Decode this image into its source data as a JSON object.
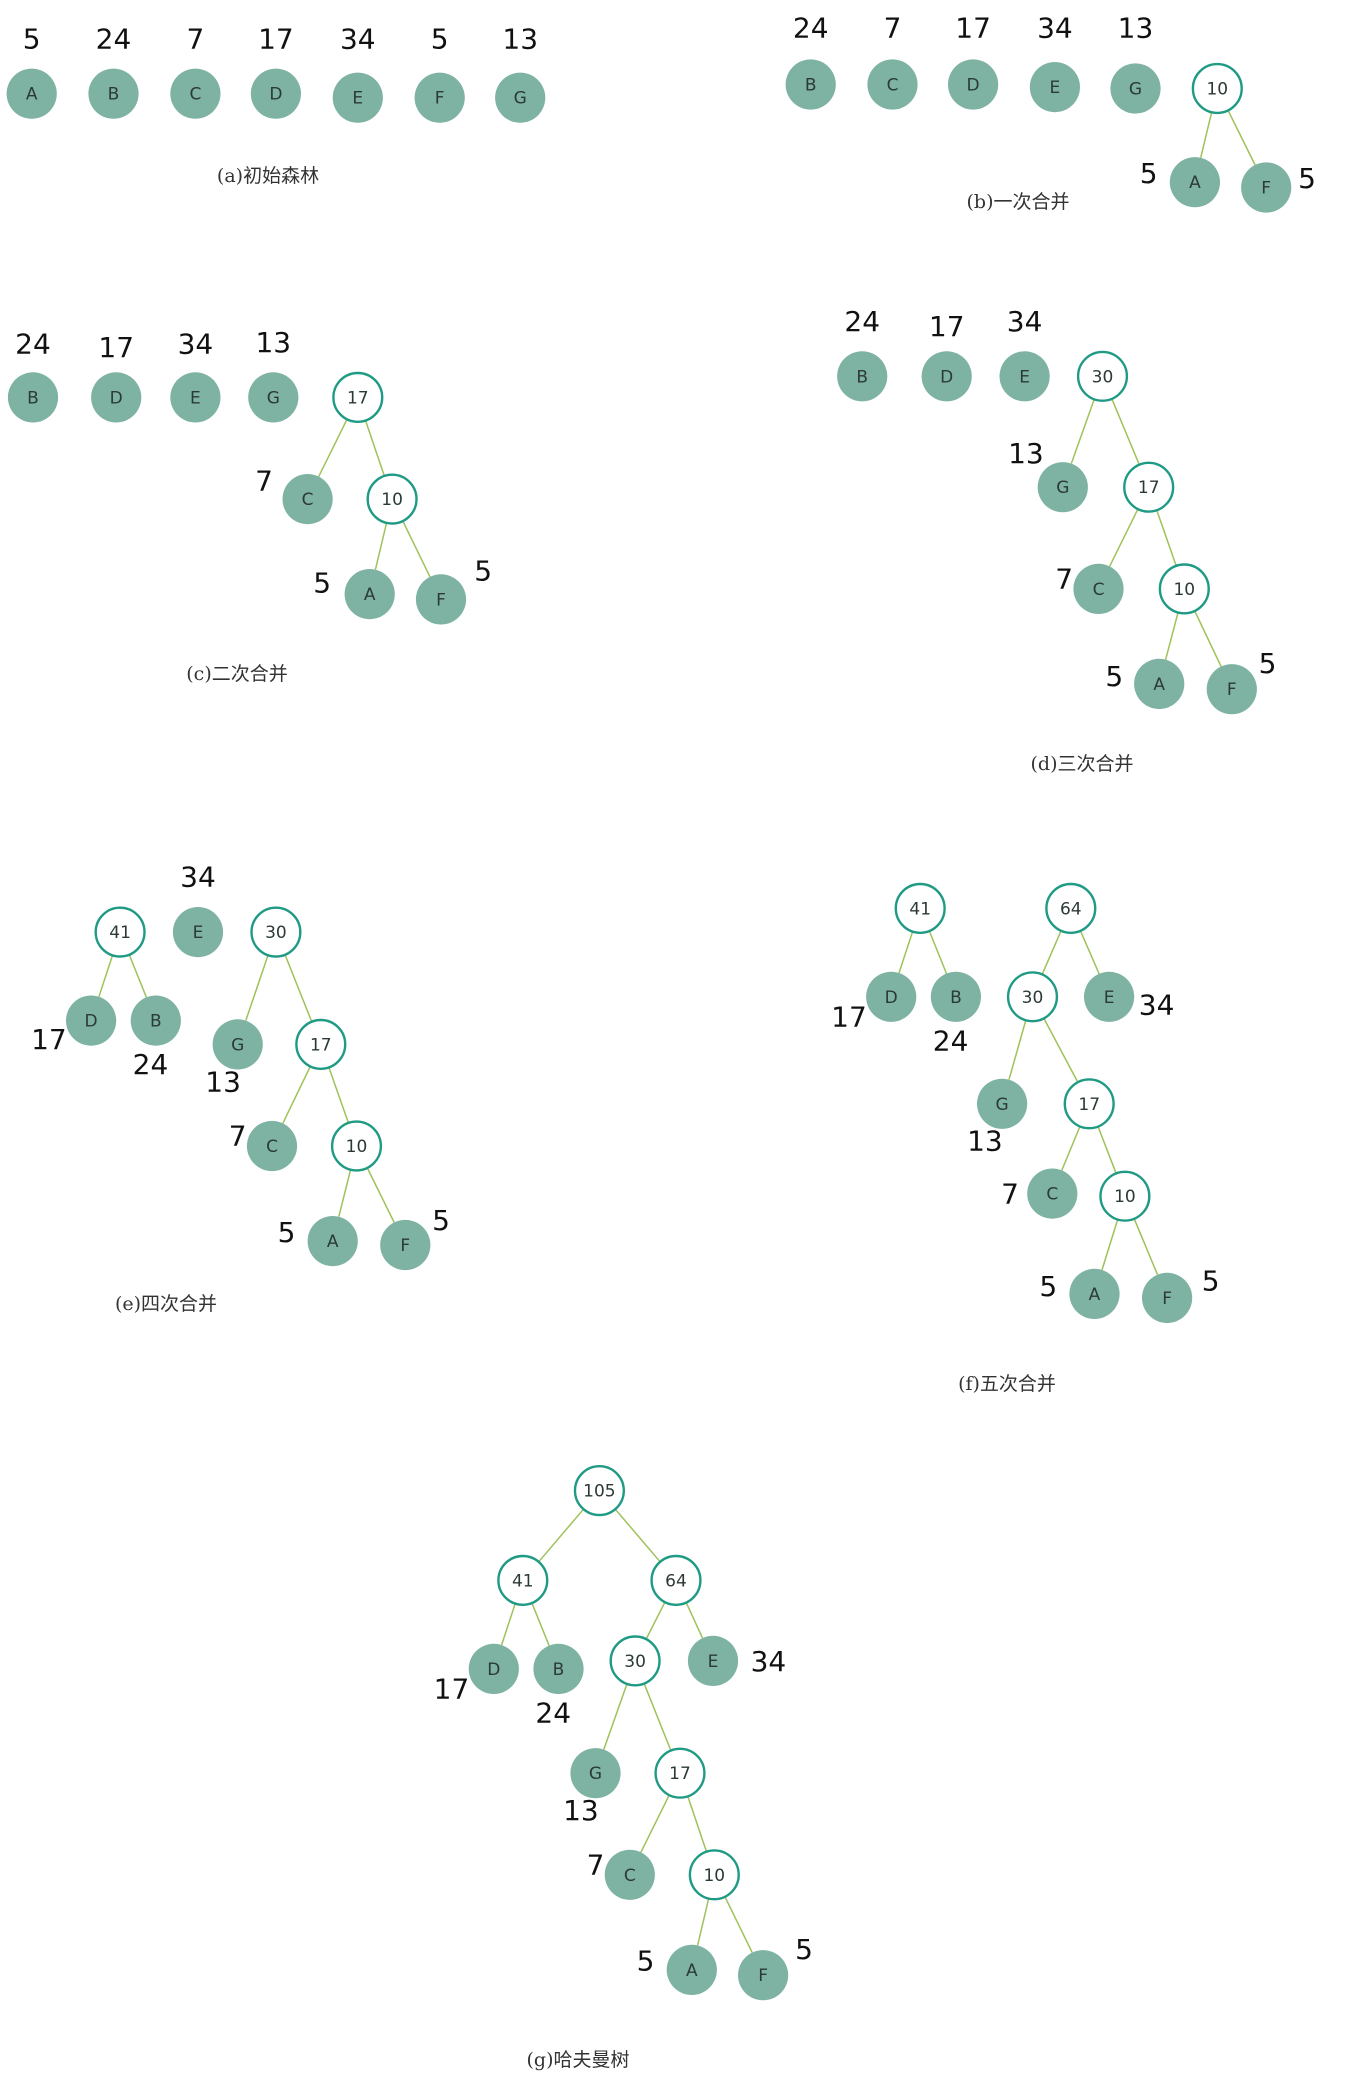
{
  "colors": {
    "leaf": "#7eb3a3",
    "inner_stroke": "#1f9a84",
    "edge": "#9ec25a"
  },
  "panels": [
    {
      "caption": "(a)初始森林",
      "nodes": [
        {
          "id": "A",
          "label": "A",
          "leaf": true,
          "weight": "5"
        },
        {
          "id": "B",
          "label": "B",
          "leaf": true,
          "weight": "24"
        },
        {
          "id": "C",
          "label": "C",
          "leaf": true,
          "weight": "7"
        },
        {
          "id": "D",
          "label": "D",
          "leaf": true,
          "weight": "17"
        },
        {
          "id": "E",
          "label": "E",
          "leaf": true,
          "weight": "34"
        },
        {
          "id": "F",
          "label": "F",
          "leaf": true,
          "weight": "5"
        },
        {
          "id": "G",
          "label": "G",
          "leaf": true,
          "weight": "13"
        }
      ],
      "edges": []
    },
    {
      "caption": "(b)一次合并",
      "nodes": [
        {
          "id": "B",
          "label": "B",
          "leaf": true,
          "weight": "24"
        },
        {
          "id": "C",
          "label": "C",
          "leaf": true,
          "weight": "7"
        },
        {
          "id": "D",
          "label": "D",
          "leaf": true,
          "weight": "17"
        },
        {
          "id": "E",
          "label": "E",
          "leaf": true,
          "weight": "34"
        },
        {
          "id": "G",
          "label": "G",
          "leaf": true,
          "weight": "13"
        },
        {
          "id": "n10",
          "label": "10",
          "leaf": false
        },
        {
          "id": "A",
          "label": "A",
          "leaf": true,
          "weight": "5"
        },
        {
          "id": "F",
          "label": "F",
          "leaf": true,
          "weight": "5"
        }
      ],
      "edges": [
        [
          "n10",
          "A"
        ],
        [
          "n10",
          "F"
        ]
      ]
    },
    {
      "caption": "(c)二次合并",
      "nodes": [
        {
          "id": "B",
          "label": "B",
          "leaf": true,
          "weight": "24"
        },
        {
          "id": "D",
          "label": "D",
          "leaf": true,
          "weight": "17"
        },
        {
          "id": "E",
          "label": "E",
          "leaf": true,
          "weight": "34"
        },
        {
          "id": "G",
          "label": "G",
          "leaf": true,
          "weight": "13"
        },
        {
          "id": "n17",
          "label": "17",
          "leaf": false
        },
        {
          "id": "C",
          "label": "C",
          "leaf": true,
          "weight": "7"
        },
        {
          "id": "n10",
          "label": "10",
          "leaf": false
        },
        {
          "id": "A",
          "label": "A",
          "leaf": true,
          "weight": "5"
        },
        {
          "id": "F",
          "label": "F",
          "leaf": true,
          "weight": "5"
        }
      ],
      "edges": [
        [
          "n17",
          "C"
        ],
        [
          "n17",
          "n10"
        ],
        [
          "n10",
          "A"
        ],
        [
          "n10",
          "F"
        ]
      ]
    },
    {
      "caption": "(d)三次合并",
      "nodes": [
        {
          "id": "B",
          "label": "B",
          "leaf": true,
          "weight": "24"
        },
        {
          "id": "D",
          "label": "D",
          "leaf": true,
          "weight": "17"
        },
        {
          "id": "E",
          "label": "E",
          "leaf": true,
          "weight": "34"
        },
        {
          "id": "n30",
          "label": "30",
          "leaf": false
        },
        {
          "id": "G",
          "label": "G",
          "leaf": true,
          "weight": "13"
        },
        {
          "id": "n17",
          "label": "17",
          "leaf": false
        },
        {
          "id": "C",
          "label": "C",
          "leaf": true,
          "weight": "7"
        },
        {
          "id": "n10",
          "label": "10",
          "leaf": false
        },
        {
          "id": "A",
          "label": "A",
          "leaf": true,
          "weight": "5"
        },
        {
          "id": "F",
          "label": "F",
          "leaf": true,
          "weight": "5"
        }
      ],
      "edges": [
        [
          "n30",
          "G"
        ],
        [
          "n30",
          "n17"
        ],
        [
          "n17",
          "C"
        ],
        [
          "n17",
          "n10"
        ],
        [
          "n10",
          "A"
        ],
        [
          "n10",
          "F"
        ]
      ]
    },
    {
      "caption": "(e)四次合并",
      "nodes": [
        {
          "id": "n41",
          "label": "41",
          "leaf": false
        },
        {
          "id": "D",
          "label": "D",
          "leaf": true,
          "weight": "17"
        },
        {
          "id": "B",
          "label": "B",
          "leaf": true,
          "weight": "24"
        },
        {
          "id": "E",
          "label": "E",
          "leaf": true,
          "weight": "34"
        },
        {
          "id": "n30",
          "label": "30",
          "leaf": false
        },
        {
          "id": "G",
          "label": "G",
          "leaf": true,
          "weight": "13"
        },
        {
          "id": "n17",
          "label": "17",
          "leaf": false
        },
        {
          "id": "C",
          "label": "C",
          "leaf": true,
          "weight": "7"
        },
        {
          "id": "n10",
          "label": "10",
          "leaf": false
        },
        {
          "id": "A",
          "label": "A",
          "leaf": true,
          "weight": "5"
        },
        {
          "id": "F",
          "label": "F",
          "leaf": true,
          "weight": "5"
        }
      ],
      "edges": [
        [
          "n41",
          "D"
        ],
        [
          "n41",
          "B"
        ],
        [
          "n30",
          "G"
        ],
        [
          "n30",
          "n17"
        ],
        [
          "n17",
          "C"
        ],
        [
          "n17",
          "n10"
        ],
        [
          "n10",
          "A"
        ],
        [
          "n10",
          "F"
        ]
      ]
    },
    {
      "caption": "(f)五次合并",
      "nodes": [
        {
          "id": "n41",
          "label": "41",
          "leaf": false
        },
        {
          "id": "D",
          "label": "D",
          "leaf": true,
          "weight": "17"
        },
        {
          "id": "B",
          "label": "B",
          "leaf": true,
          "weight": "24"
        },
        {
          "id": "n64",
          "label": "64",
          "leaf": false
        },
        {
          "id": "n30",
          "label": "30",
          "leaf": false
        },
        {
          "id": "E",
          "label": "E",
          "leaf": true,
          "weight": "34"
        },
        {
          "id": "G",
          "label": "G",
          "leaf": true,
          "weight": "13"
        },
        {
          "id": "n17",
          "label": "17",
          "leaf": false
        },
        {
          "id": "C",
          "label": "C",
          "leaf": true,
          "weight": "7"
        },
        {
          "id": "n10",
          "label": "10",
          "leaf": false
        },
        {
          "id": "A",
          "label": "A",
          "leaf": true,
          "weight": "5"
        },
        {
          "id": "F",
          "label": "F",
          "leaf": true,
          "weight": "5"
        }
      ],
      "edges": [
        [
          "n41",
          "D"
        ],
        [
          "n41",
          "B"
        ],
        [
          "n64",
          "n30"
        ],
        [
          "n64",
          "E"
        ],
        [
          "n30",
          "G"
        ],
        [
          "n30",
          "n17"
        ],
        [
          "n17",
          "C"
        ],
        [
          "n17",
          "n10"
        ],
        [
          "n10",
          "A"
        ],
        [
          "n10",
          "F"
        ]
      ]
    },
    {
      "caption": "(g)哈夫曼树",
      "nodes": [
        {
          "id": "n105",
          "label": "105",
          "leaf": false
        },
        {
          "id": "n41",
          "label": "41",
          "leaf": false
        },
        {
          "id": "n64",
          "label": "64",
          "leaf": false
        },
        {
          "id": "D",
          "label": "D",
          "leaf": true,
          "weight": "17"
        },
        {
          "id": "B",
          "label": "B",
          "leaf": true,
          "weight": "24"
        },
        {
          "id": "n30",
          "label": "30",
          "leaf": false
        },
        {
          "id": "E",
          "label": "E",
          "leaf": true,
          "weight": "34"
        },
        {
          "id": "G",
          "label": "G",
          "leaf": true,
          "weight": "13"
        },
        {
          "id": "n17",
          "label": "17",
          "leaf": false
        },
        {
          "id": "C",
          "label": "C",
          "leaf": true,
          "weight": "7"
        },
        {
          "id": "n10",
          "label": "10",
          "leaf": false
        },
        {
          "id": "A",
          "label": "A",
          "leaf": true,
          "weight": "5"
        },
        {
          "id": "F",
          "label": "F",
          "leaf": true,
          "weight": "5"
        }
      ],
      "edges": [
        [
          "n105",
          "n41"
        ],
        [
          "n105",
          "n64"
        ],
        [
          "n41",
          "D"
        ],
        [
          "n41",
          "B"
        ],
        [
          "n64",
          "n30"
        ],
        [
          "n64",
          "E"
        ],
        [
          "n30",
          "G"
        ],
        [
          "n30",
          "n17"
        ],
        [
          "n17",
          "C"
        ],
        [
          "n17",
          "n10"
        ],
        [
          "n10",
          "A"
        ],
        [
          "n10",
          "F"
        ]
      ]
    }
  ]
}
